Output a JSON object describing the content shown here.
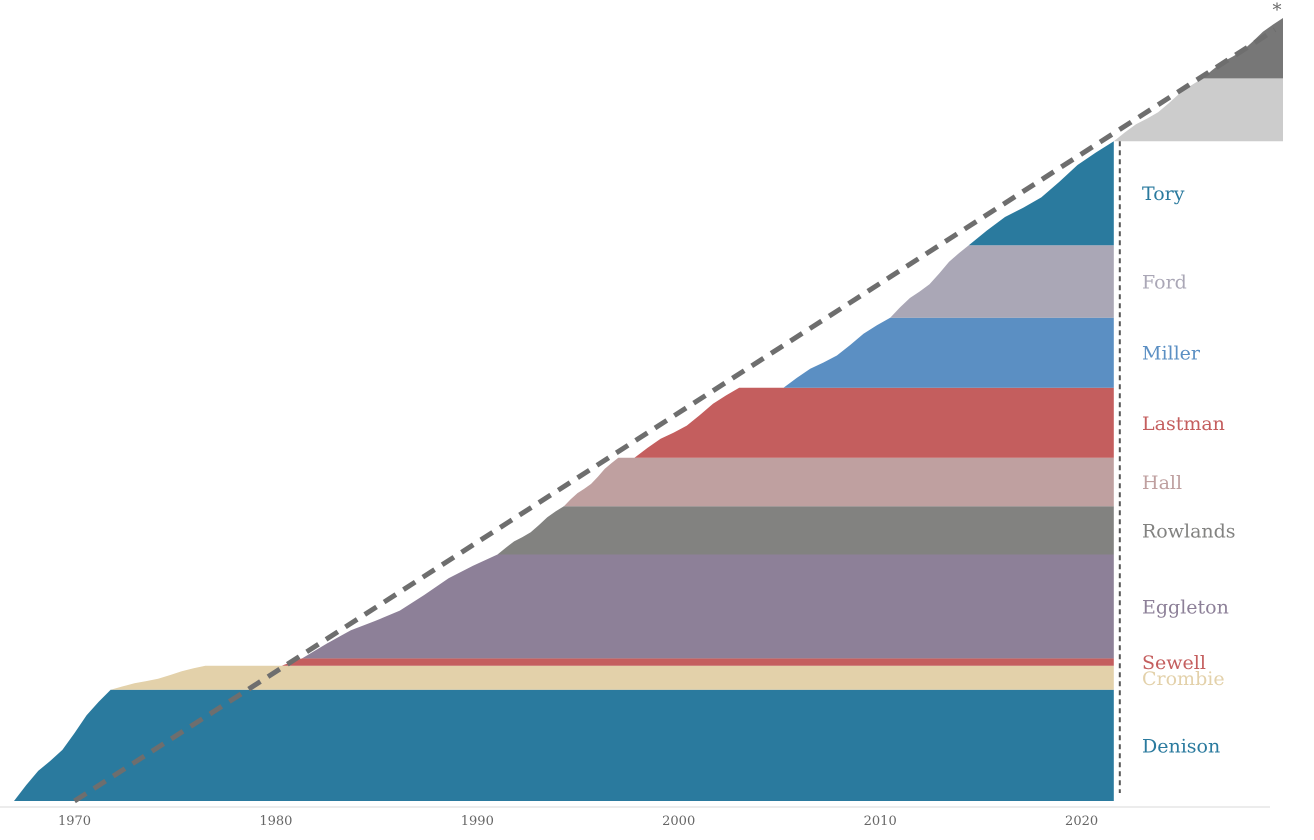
{
  "chart_data": {
    "type": "area",
    "title": "",
    "xlabel": "",
    "ylabel": "",
    "xlim": [
      1966.7,
      2030
    ],
    "x_ticks": [
      "1970",
      "1980",
      "1990",
      "2000",
      "2010",
      "2020"
    ],
    "grid": false,
    "legend": "labels on right",
    "diagonal_marker": "*",
    "series": [
      {
        "name": "Denison",
        "color": "#2a7a9e",
        "label_color": "#2a7a9e",
        "level": [
          0,
          46
        ],
        "from_year": 1967,
        "full_year": 1971.8,
        "to_year": 2021.6
      },
      {
        "name": "Crombie",
        "color": "#e3d1aa",
        "label_color": "#e3d1aa",
        "level": [
          46,
          56
        ],
        "from_year": 1971.8,
        "full_year": 1976.5,
        "to_year": 2021.6
      },
      {
        "name": "Sewell",
        "color": "#c45e5e",
        "label_color": "#c45e5e",
        "level": [
          56,
          59
        ],
        "from_year": 1980.3,
        "full_year": 1981.3,
        "to_year": 2021.6
      },
      {
        "name": "Eggleton",
        "color": "#8d8098",
        "label_color": "#8d8098",
        "level": [
          59,
          102
        ],
        "from_year": 1981.3,
        "full_year": 1991.0,
        "to_year": 2021.6
      },
      {
        "name": "Rowlands",
        "color": "#828280",
        "label_color": "#828280",
        "level": [
          102,
          122
        ],
        "from_year": 1991.0,
        "full_year": 1994.3,
        "to_year": 2021.6
      },
      {
        "name": "Hall",
        "color": "#bfa0a0",
        "label_color": "#bfa0a0",
        "level": [
          122,
          142
        ],
        "from_year": 1994.3,
        "full_year": 1997.0,
        "to_year": 2021.6
      },
      {
        "name": "Lastman",
        "color": "#c45e5e",
        "label_color": "#c45e5e",
        "level": [
          142,
          171
        ],
        "from_year": 1997.8,
        "full_year": 2003.0,
        "to_year": 2021.6
      },
      {
        "name": "Miller",
        "color": "#5b8fc3",
        "label_color": "#5b8fc3",
        "level": [
          171,
          200
        ],
        "from_year": 2005.2,
        "full_year": 2010.5,
        "to_year": 2021.6
      },
      {
        "name": "Ford",
        "color": "#aaa7b6",
        "label_color": "#aaa7b6",
        "level": [
          200,
          230
        ],
        "from_year": 2010.5,
        "full_year": 2014.4,
        "to_year": 2021.6
      },
      {
        "name": "Tory",
        "color": "#2a7a9e",
        "label_color": "#2a7a9e",
        "level": [
          230,
          273
        ],
        "from_year": 2014.4,
        "full_year": 2021.6,
        "to_year": 2021.6
      },
      {
        "name": "",
        "color": "#cccccc",
        "label_color": "#cccccc",
        "level": [
          273,
          299
        ],
        "from_year": 2021.6,
        "full_year": 2026.0,
        "to_year": 2030
      },
      {
        "name": "",
        "color": "#777777",
        "label_color": "#777777",
        "level": [
          299,
          324
        ],
        "from_year": 2026.0,
        "full_year": 2030,
        "to_year": 2030
      }
    ]
  }
}
